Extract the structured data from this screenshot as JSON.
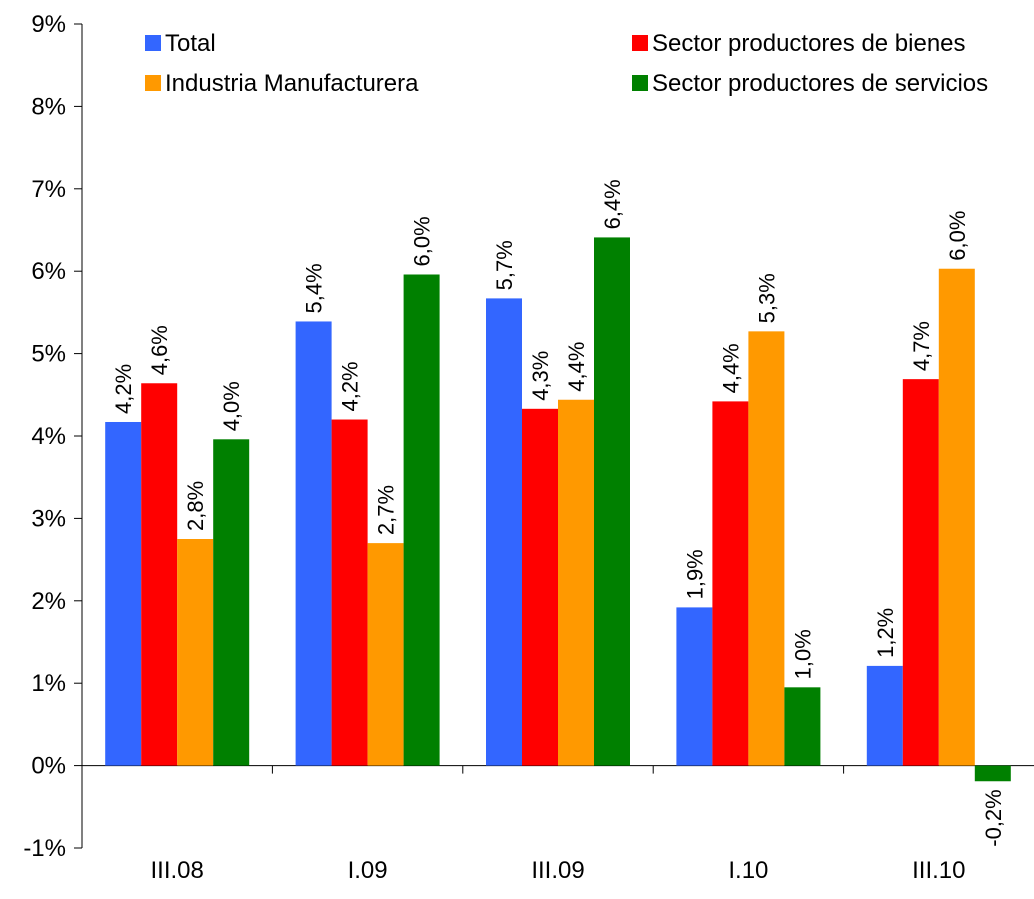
{
  "chart_data": {
    "type": "bar",
    "categories": [
      "III.08",
      "I.09",
      "III.09",
      "I.10",
      "III.10"
    ],
    "series": [
      {
        "name": "Total",
        "color": "#3366FF",
        "values": [
          4.17,
          5.39,
          5.67,
          1.92,
          1.21
        ],
        "labels": [
          "4,2%",
          "5,4%",
          "5,7%",
          "1,9%",
          "1,2%"
        ]
      },
      {
        "name": "Sector productores de bienes",
        "color": "#FF0000",
        "values": [
          4.64,
          4.2,
          4.33,
          4.42,
          4.69
        ],
        "labels": [
          "4,6%",
          "4,2%",
          "4,3%",
          "4,4%",
          "4,7%"
        ]
      },
      {
        "name": "Industria Manufacturera",
        "color": "#FF9900",
        "values": [
          2.75,
          2.7,
          4.44,
          5.27,
          6.03
        ],
        "labels": [
          "2,8%",
          "2,7%",
          "4,4%",
          "5,3%",
          "6,0%"
        ]
      },
      {
        "name": "Sector productores de servicios",
        "color": "#008000",
        "values": [
          3.96,
          5.96,
          6.41,
          0.95,
          -0.19
        ],
        "labels": [
          "4,0%",
          "6,0%",
          "6,4%",
          "1,0%",
          "-0,2%"
        ]
      }
    ],
    "ylim": [
      -1,
      9
    ],
    "yticks": [
      "-1%",
      "0%",
      "1%",
      "2%",
      "3%",
      "4%",
      "5%",
      "6%",
      "7%",
      "8%",
      "9%"
    ],
    "grid": false,
    "legend": "top"
  }
}
